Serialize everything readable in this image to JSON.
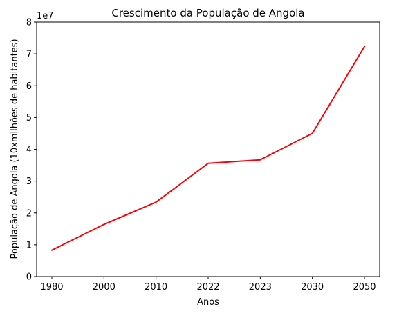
{
  "chart_data": {
    "type": "line",
    "title": "Crescimento da População de Angola",
    "xlabel": "Anos",
    "ylabel": "População de Angola (10xmilhões de habitantes)",
    "y_offset_label": "1e7",
    "y_scale": 10000000,
    "categories": [
      "1980",
      "2000",
      "2010",
      "2022",
      "2023",
      "2030",
      "2050"
    ],
    "series": [
      {
        "values": [
          8300000,
          16400000,
          23400000,
          35600000,
          36700000,
          45000000,
          72300000
        ],
        "color": "#ff0000"
      }
    ],
    "ylim": [
      0,
      80000000
    ],
    "yticks": [
      0,
      10000000,
      20000000,
      30000000,
      40000000,
      50000000,
      60000000,
      70000000,
      80000000
    ],
    "ytick_labels": [
      "0",
      "1",
      "2",
      "3",
      "4",
      "5",
      "6",
      "7",
      "8"
    ],
    "grid": false,
    "legend": "none"
  }
}
